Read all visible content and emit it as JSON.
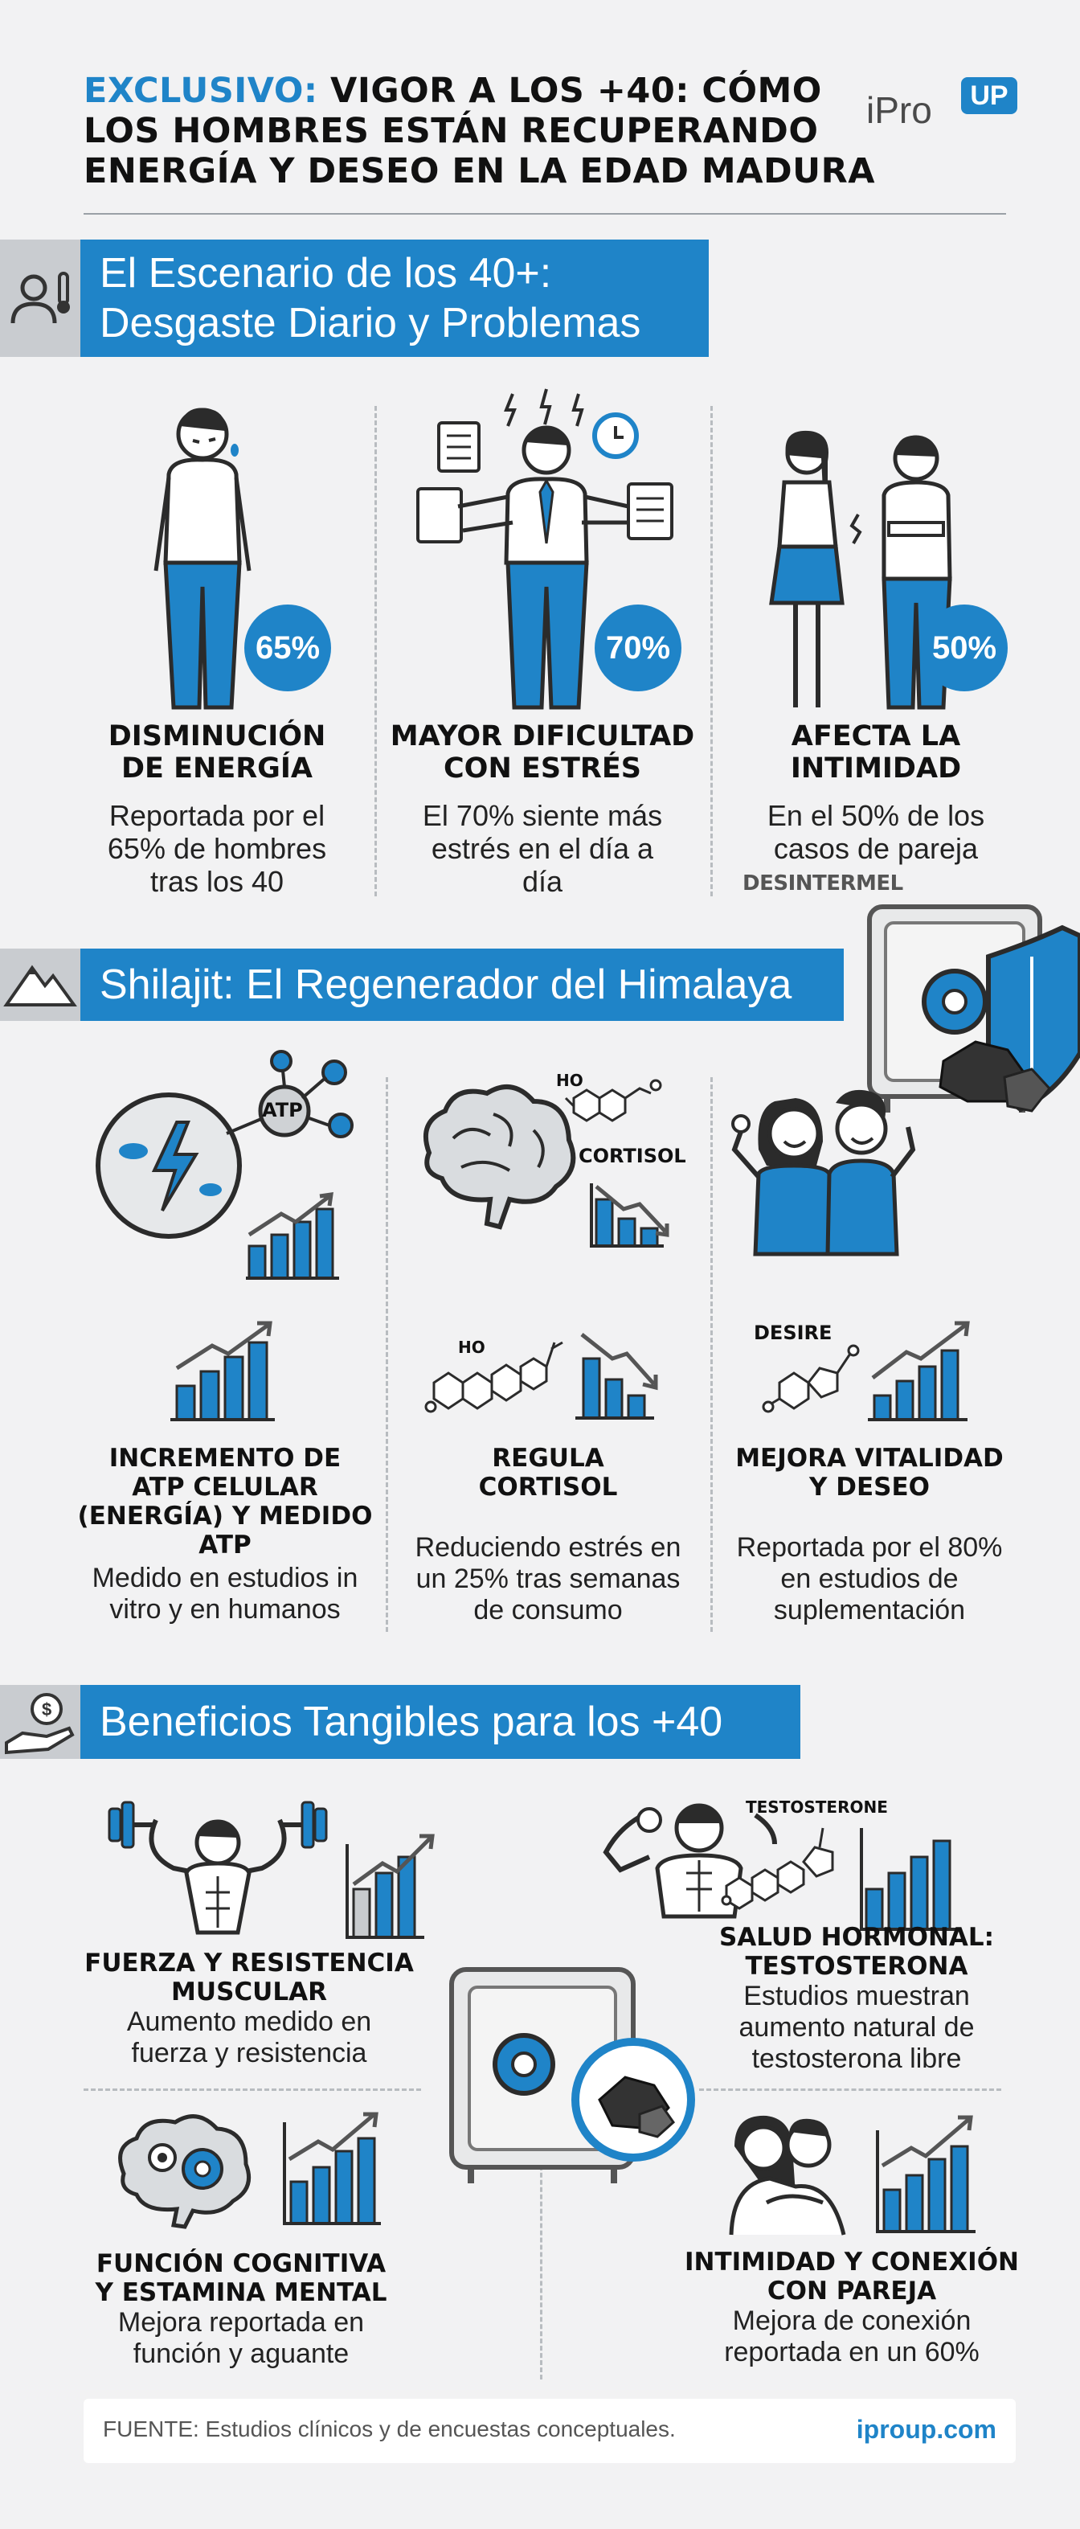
{
  "header": {
    "title_accent": "EXCLUSIVO:",
    "title_line1": " VIGOR A LOS +40: CÓMO",
    "title_line2": "LOS HOMBRES ESTÁN RECUPERANDO",
    "title_line3": "ENERGÍA Y DESEO EN LA EDAD MADURA",
    "logo_text": "iPro",
    "logo_badge": "UP"
  },
  "colors": {
    "accent": "#1f84c8",
    "background": "#f2f2f3",
    "dark": "#2b2b2b"
  },
  "section1": {
    "title_line1": "El Escenario de los 40+:",
    "title_line2": "Desgaste Diario y Problemas",
    "icon": "man-thermometer-icon",
    "items": [
      {
        "badge": "65%",
        "heading_l1": "DISMINUCIÓN",
        "heading_l2": "DE ENERGÍA",
        "desc_l1": "Reportada por el",
        "desc_l2": "65% de hombres",
        "desc_l3": "tras los 40",
        "icon": "tired-man-icon"
      },
      {
        "badge": "70%",
        "heading_l1": "MAYOR DIFICULTAD",
        "heading_l2": "CON ESTRÉS",
        "desc_l1": "El 70% siente más",
        "desc_l2": "estrés en el día a",
        "desc_l3": "día",
        "icon": "stressed-man-icon"
      },
      {
        "badge": "50%",
        "heading_l1": "AFECTA LA",
        "heading_l2": "INTIMIDAD",
        "desc_l1": "En el 50% de los",
        "desc_l2": "casos de pareja",
        "desc_l3": "",
        "icon": "couple-apart-icon"
      }
    ],
    "watermark": "DESINTERMEL"
  },
  "section2": {
    "title": "Shilajit: El Regenerador del Himalaya",
    "icon": "mountain-icon",
    "labels": {
      "atp": "ATP",
      "cortisol": "CORTISOL",
      "desire": "DESIRE",
      "ho1": "HO",
      "ho2": "HO"
    },
    "items": [
      {
        "heading_l1": "INCREMENTO DE",
        "heading_l2": "ATP CELULAR",
        "heading_l3": "(ENERGÍA) Y MEDIDO",
        "heading_l4": "ATP",
        "desc_l1": "Medido en estudios in",
        "desc_l2": "vitro y en humanos"
      },
      {
        "heading_l1": "REGULA",
        "heading_l2": "CORTISOL",
        "desc_l1": "Reduciendo estrés en",
        "desc_l2": "un 25% tras semanas",
        "desc_l3": "de consumo"
      },
      {
        "heading_l1": "MEJORA VITALIDAD",
        "heading_l2": "Y DESEO",
        "desc_l1": "Reportada por el 80%",
        "desc_l2": "en estudios de",
        "desc_l3": "suplementación"
      }
    ]
  },
  "section3": {
    "title": "Beneficios Tangibles para los +40",
    "icon": "money-hand-icon",
    "labels": {
      "testosterone": "TESTOSTERONE"
    },
    "items": [
      {
        "heading_l1": "FUERZA Y RESISTENCIA",
        "heading_l2": "MUSCULAR",
        "desc_l1": "Aumento medido en",
        "desc_l2": "fuerza y resistencia"
      },
      {
        "heading_l1": "SALUD HORMONAL:",
        "heading_l2": "TESTOSTERONA",
        "desc_l1": "Estudios muestran",
        "desc_l2": "aumento natural de",
        "desc_l3": "testosterona libre"
      },
      {
        "heading_l1": "FUNCIÓN COGNITIVA",
        "heading_l2": "Y ESTAMINA MENTAL",
        "desc_l1": "Mejora reportada en",
        "desc_l2": "función y aguante"
      },
      {
        "heading_l1": "INTIMIDAD Y CONEXIÓN",
        "heading_l2": "CON PAREJA",
        "desc_l1": "Mejora de conexión",
        "desc_l2": "reportada en un 60%"
      }
    ]
  },
  "footer": {
    "source": "FUENTE: Estudios clínicos y de encuestas conceptuales.",
    "url": "iproup.com"
  }
}
